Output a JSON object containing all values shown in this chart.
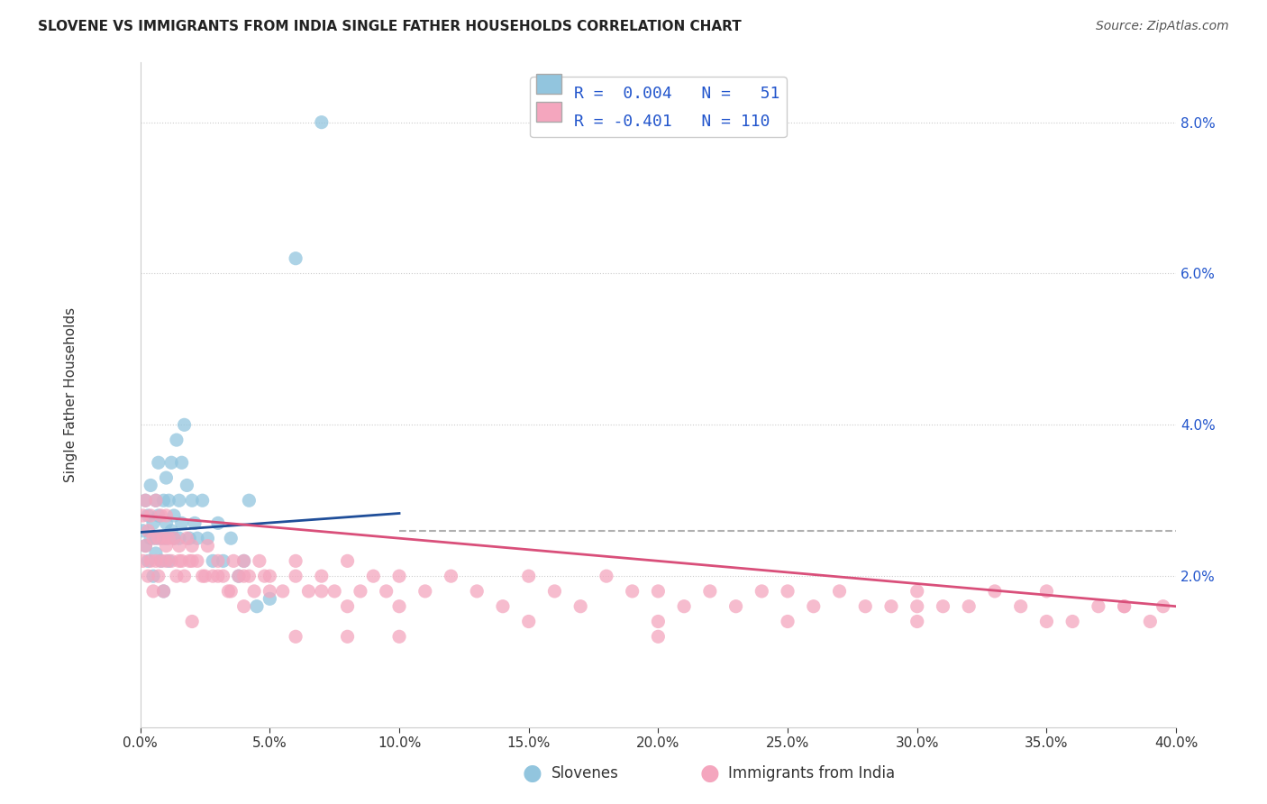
{
  "title": "SLOVENE VS IMMIGRANTS FROM INDIA SINGLE FATHER HOUSEHOLDS CORRELATION CHART",
  "source": "Source: ZipAtlas.com",
  "ylabel": "Single Father Households",
  "xlim": [
    0.0,
    0.4
  ],
  "ylim": [
    0.0,
    0.088
  ],
  "xticks": [
    0.0,
    0.05,
    0.1,
    0.15,
    0.2,
    0.25,
    0.3,
    0.35,
    0.4
  ],
  "xticklabels": [
    "0.0%",
    "5.0%",
    "10.0%",
    "15.0%",
    "20.0%",
    "25.0%",
    "30.0%",
    "35.0%",
    "40.0%"
  ],
  "yticks": [
    0.0,
    0.02,
    0.04,
    0.06,
    0.08
  ],
  "yticklabels": [
    "",
    "2.0%",
    "4.0%",
    "6.0%",
    "8.0%"
  ],
  "legend_label1": "Slovenes",
  "legend_label2": "Immigrants from India",
  "color_blue": "#92c5de",
  "color_pink": "#f4a6be",
  "line_blue": "#1f4e99",
  "line_pink": "#d94f7a",
  "dashed_line_color": "#b0b0b0",
  "dashed_line_y": 0.026,
  "background_color": "#ffffff",
  "grid_color": "#cccccc",
  "blue_trend_x0": 0.0,
  "blue_trend_x1": 0.1,
  "blue_trend_slope": 0.025,
  "blue_trend_intercept": 0.0258,
  "pink_trend_x0": 0.0,
  "pink_trend_x1": 0.4,
  "pink_trend_slope": -0.03,
  "pink_trend_intercept": 0.028,
  "blue_scatter_x": [
    0.001,
    0.002,
    0.002,
    0.003,
    0.003,
    0.004,
    0.004,
    0.005,
    0.005,
    0.006,
    0.006,
    0.006,
    0.007,
    0.007,
    0.008,
    0.008,
    0.009,
    0.009,
    0.01,
    0.01,
    0.01,
    0.011,
    0.011,
    0.012,
    0.012,
    0.013,
    0.013,
    0.014,
    0.015,
    0.015,
    0.016,
    0.016,
    0.017,
    0.018,
    0.019,
    0.02,
    0.021,
    0.022,
    0.024,
    0.026,
    0.028,
    0.03,
    0.032,
    0.035,
    0.038,
    0.04,
    0.042,
    0.045,
    0.05,
    0.06,
    0.07
  ],
  "blue_scatter_y": [
    0.026,
    0.024,
    0.03,
    0.022,
    0.028,
    0.025,
    0.032,
    0.027,
    0.02,
    0.025,
    0.03,
    0.023,
    0.035,
    0.028,
    0.025,
    0.022,
    0.03,
    0.018,
    0.027,
    0.033,
    0.025,
    0.03,
    0.022,
    0.026,
    0.035,
    0.028,
    0.025,
    0.038,
    0.03,
    0.025,
    0.035,
    0.027,
    0.04,
    0.032,
    0.025,
    0.03,
    0.027,
    0.025,
    0.03,
    0.025,
    0.022,
    0.027,
    0.022,
    0.025,
    0.02,
    0.022,
    0.03,
    0.016,
    0.017,
    0.062,
    0.08
  ],
  "pink_scatter_x": [
    0.001,
    0.001,
    0.002,
    0.002,
    0.003,
    0.003,
    0.004,
    0.004,
    0.005,
    0.005,
    0.006,
    0.006,
    0.007,
    0.007,
    0.008,
    0.008,
    0.009,
    0.009,
    0.01,
    0.01,
    0.011,
    0.012,
    0.013,
    0.014,
    0.015,
    0.016,
    0.017,
    0.018,
    0.019,
    0.02,
    0.022,
    0.024,
    0.026,
    0.028,
    0.03,
    0.032,
    0.034,
    0.036,
    0.038,
    0.04,
    0.042,
    0.044,
    0.046,
    0.048,
    0.05,
    0.055,
    0.06,
    0.065,
    0.07,
    0.075,
    0.08,
    0.085,
    0.09,
    0.095,
    0.1,
    0.11,
    0.12,
    0.13,
    0.14,
    0.15,
    0.16,
    0.17,
    0.18,
    0.19,
    0.2,
    0.21,
    0.22,
    0.23,
    0.24,
    0.25,
    0.26,
    0.27,
    0.28,
    0.29,
    0.3,
    0.31,
    0.32,
    0.33,
    0.34,
    0.35,
    0.36,
    0.37,
    0.38,
    0.39,
    0.395,
    0.01,
    0.015,
    0.02,
    0.025,
    0.03,
    0.035,
    0.04,
    0.05,
    0.06,
    0.07,
    0.08,
    0.1,
    0.15,
    0.2,
    0.25,
    0.3,
    0.35,
    0.38,
    0.02,
    0.04,
    0.06,
    0.08,
    0.1,
    0.2,
    0.3
  ],
  "pink_scatter_y": [
    0.028,
    0.022,
    0.03,
    0.024,
    0.026,
    0.02,
    0.028,
    0.022,
    0.025,
    0.018,
    0.03,
    0.022,
    0.025,
    0.02,
    0.028,
    0.022,
    0.025,
    0.018,
    0.028,
    0.022,
    0.025,
    0.022,
    0.025,
    0.02,
    0.024,
    0.022,
    0.02,
    0.025,
    0.022,
    0.024,
    0.022,
    0.02,
    0.024,
    0.02,
    0.022,
    0.02,
    0.018,
    0.022,
    0.02,
    0.022,
    0.02,
    0.018,
    0.022,
    0.02,
    0.02,
    0.018,
    0.022,
    0.018,
    0.02,
    0.018,
    0.022,
    0.018,
    0.02,
    0.018,
    0.02,
    0.018,
    0.02,
    0.018,
    0.016,
    0.02,
    0.018,
    0.016,
    0.02,
    0.018,
    0.018,
    0.016,
    0.018,
    0.016,
    0.018,
    0.018,
    0.016,
    0.018,
    0.016,
    0.016,
    0.018,
    0.016,
    0.016,
    0.018,
    0.016,
    0.018,
    0.014,
    0.016,
    0.016,
    0.014,
    0.016,
    0.024,
    0.022,
    0.022,
    0.02,
    0.02,
    0.018,
    0.02,
    0.018,
    0.02,
    0.018,
    0.016,
    0.016,
    0.014,
    0.014,
    0.014,
    0.016,
    0.014,
    0.016,
    0.014,
    0.016,
    0.012,
    0.012,
    0.012,
    0.012,
    0.014
  ]
}
